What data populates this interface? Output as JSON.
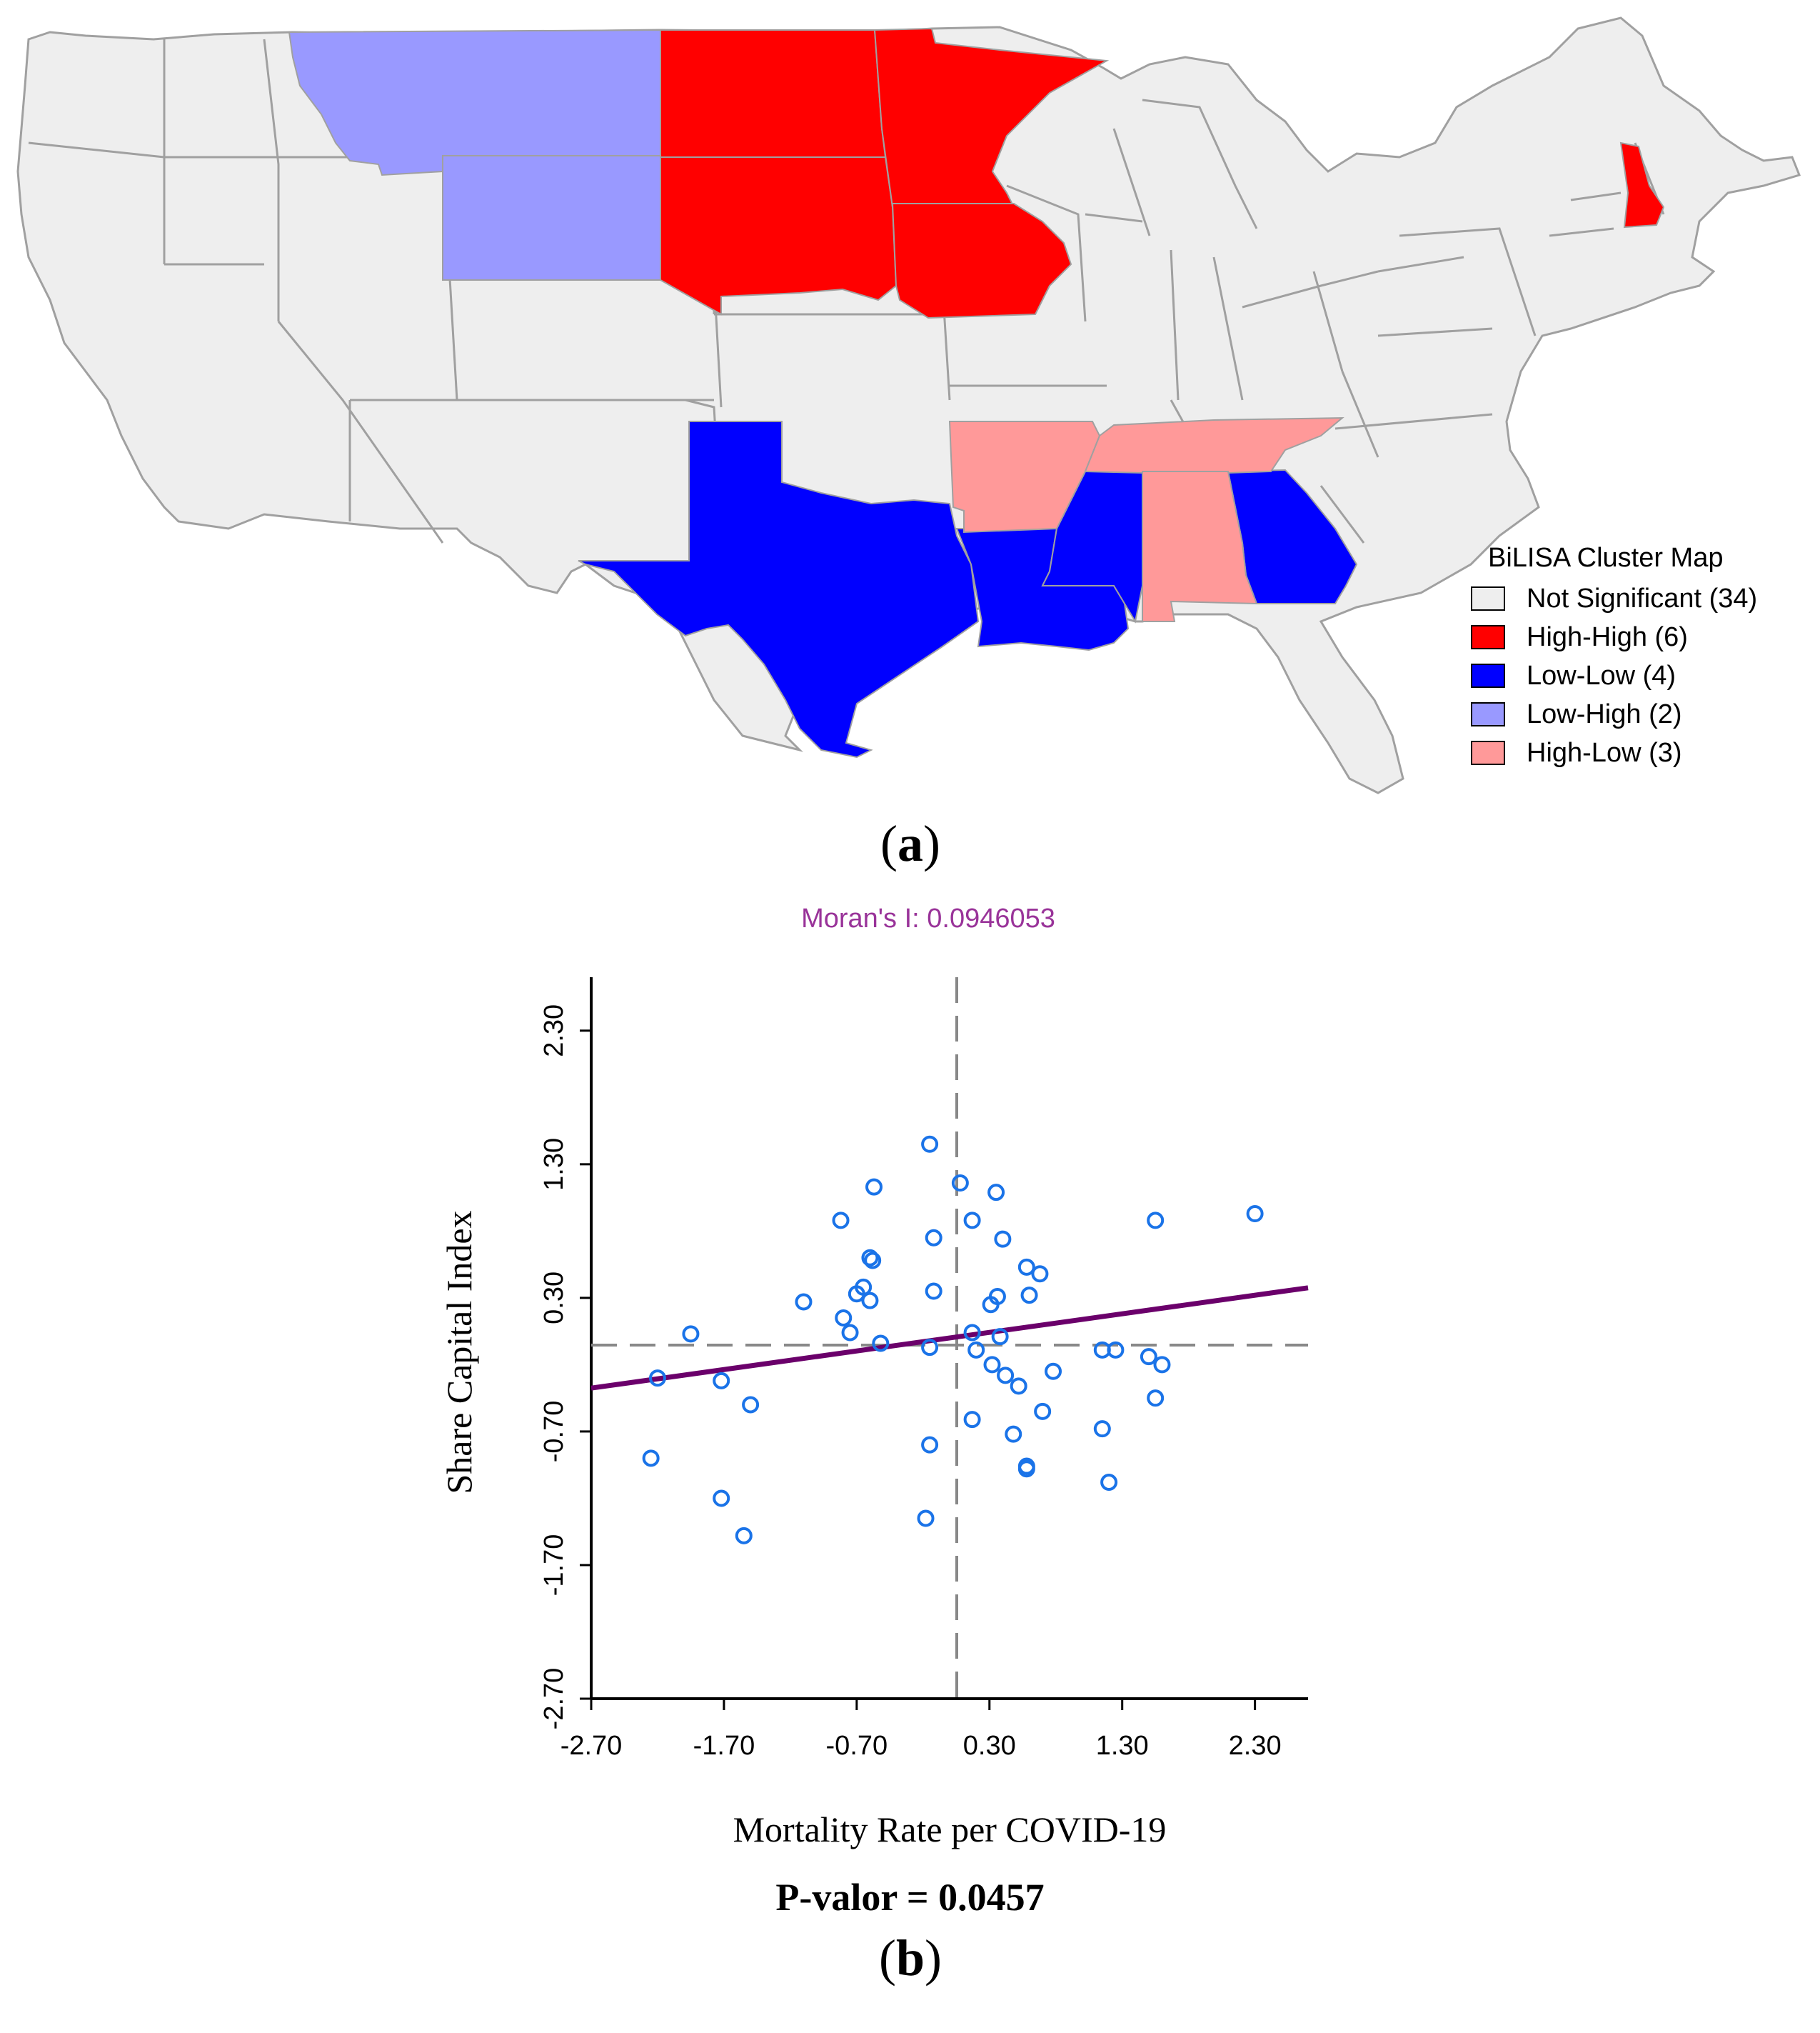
{
  "map": {
    "legend": {
      "title": "BiLISA Cluster Map",
      "items": [
        {
          "label": "Not Significant (34)",
          "color": "#eeeeee"
        },
        {
          "label": "High-High (6)",
          "color": "#ff0000"
        },
        {
          "label": "Low-Low (4)",
          "color": "#0000ff"
        },
        {
          "label": "Low-High (2)",
          "color": "#9999ff"
        },
        {
          "label": "High-Low (3)",
          "color": "#ff9999"
        }
      ]
    },
    "state_colors": {
      "not_significant": "#eeeeee",
      "high_high": "#ff0000",
      "low_low": "#0000ff",
      "low_high": "#9999ff",
      "high_low": "#ff9999",
      "border": "#a0a0a0"
    },
    "panel_label": "a"
  },
  "chart_data": {
    "type": "scatter",
    "title": "Moran's I: 0.0946053",
    "xlabel": "Mortality Rate per COVID-19",
    "ylabel": "Share Capital Index",
    "xlim": [
      -2.7,
      2.7
    ],
    "ylim": [
      -2.7,
      2.7
    ],
    "x_ticks": [
      "-2.70",
      "-1.70",
      "-0.70",
      "0.30",
      "1.30",
      "2.30"
    ],
    "y_ticks": [
      "-2.70",
      "-1.70",
      "-0.70",
      "0.30",
      "1.30",
      "2.30"
    ],
    "mean_x": 0.0,
    "mean_y": 0.0,
    "regression": {
      "slope": 0.0946053,
      "intercept": 0.0
    },
    "points": [
      [
        -1.95,
        0.03
      ],
      [
        -2.2,
        -0.3
      ],
      [
        -2.25,
        -0.9
      ],
      [
        -1.72,
        -0.32
      ],
      [
        -1.72,
        -1.2
      ],
      [
        -1.55,
        -1.48
      ],
      [
        -1.5,
        -0.5
      ],
      [
        -1.1,
        0.27
      ],
      [
        -0.82,
        0.88
      ],
      [
        -0.8,
        0.15
      ],
      [
        -0.75,
        0.04
      ],
      [
        -0.57,
        1.13
      ],
      [
        -0.6,
        0.6
      ],
      [
        -0.58,
        0.58
      ],
      [
        -0.52,
        -0.04
      ],
      [
        -0.65,
        0.38
      ],
      [
        -0.7,
        0.33
      ],
      [
        -0.6,
        0.28
      ],
      [
        -0.15,
        1.45
      ],
      [
        -0.12,
        0.75
      ],
      [
        -0.12,
        0.35
      ],
      [
        -0.15,
        -0.07
      ],
      [
        -0.15,
        -0.8
      ],
      [
        -0.18,
        -1.35
      ],
      [
        0.08,
        1.16
      ],
      [
        0.17,
        0.88
      ],
      [
        0.35,
        1.09
      ],
      [
        0.4,
        0.74
      ],
      [
        0.31,
        0.25
      ],
      [
        0.38,
        0.01
      ],
      [
        0.36,
        0.31
      ],
      [
        0.17,
        0.04
      ],
      [
        0.2,
        -0.09
      ],
      [
        0.32,
        -0.2
      ],
      [
        0.42,
        -0.28
      ],
      [
        0.52,
        -0.36
      ],
      [
        0.48,
        -0.72
      ],
      [
        0.58,
        0.53
      ],
      [
        0.6,
        0.32
      ],
      [
        0.68,
        0.48
      ],
      [
        0.7,
        -0.55
      ],
      [
        0.78,
        -0.25
      ],
      [
        0.58,
        -0.96
      ],
      [
        0.58,
        -0.98
      ],
      [
        0.17,
        -0.61
      ],
      [
        1.15,
        -0.09
      ],
      [
        1.25,
        -0.09
      ],
      [
        1.15,
        -0.68
      ],
      [
        1.2,
        -1.08
      ],
      [
        1.5,
        -0.14
      ],
      [
        1.6,
        -0.2
      ],
      [
        1.55,
        -0.45
      ],
      [
        1.55,
        0.88
      ],
      [
        2.3,
        0.93
      ]
    ],
    "panel_label": "b",
    "p_value_label": "P-valor = 0.0457"
  }
}
